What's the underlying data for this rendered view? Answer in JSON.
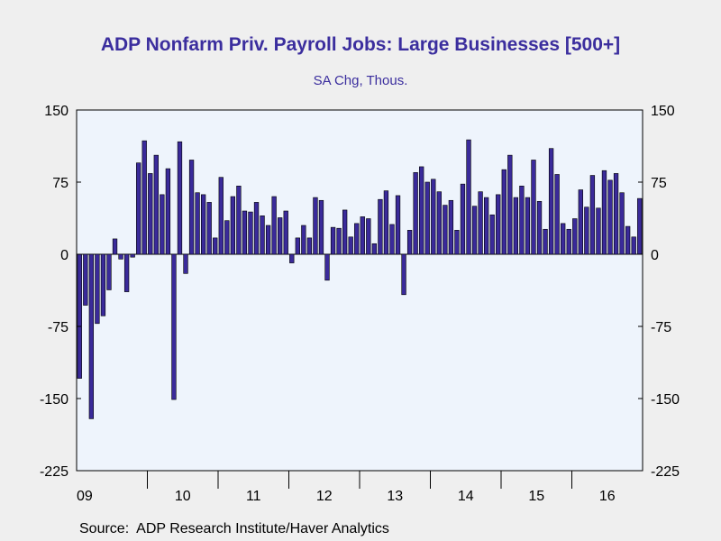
{
  "title": "ADP Nonfarm Priv. Payroll Jobs: Large Businesses [500+]",
  "subtitle": "SA Chg, Thous.",
  "source": "Source:  ADP Research Institute/Haver Analytics",
  "colors": {
    "background": "#efefef",
    "plot_background": "#eef4fc",
    "bar_fill": "#3a2a9a",
    "bar_stroke": "#000000",
    "title": "#3b2e9e"
  },
  "chart_data": {
    "type": "bar",
    "x_start": "2009-01",
    "x_end": "2016-12",
    "frequency": "monthly",
    "x_tick_labels": [
      "09",
      "10",
      "11",
      "12",
      "13",
      "14",
      "15",
      "16"
    ],
    "y_tick_labels": [
      "150",
      "75",
      "0",
      "-75",
      "-150",
      "-225"
    ],
    "ylim": [
      -225,
      150
    ],
    "yticks": [
      150,
      75,
      0,
      -75,
      -150,
      -225
    ],
    "grid": false,
    "legend": "none",
    "values": [
      -129,
      -53,
      -171,
      -72,
      -64,
      -37,
      16,
      -5,
      -39,
      -3,
      95,
      118,
      84,
      103,
      62,
      89,
      -151,
      117,
      -20,
      98,
      64,
      62,
      54,
      17,
      80,
      35,
      60,
      71,
      45,
      44,
      54,
      40,
      30,
      60,
      38,
      45,
      -9,
      17,
      30,
      17,
      59,
      56,
      -27,
      28,
      27,
      46,
      18,
      32,
      39,
      37,
      11,
      57,
      66,
      31,
      61,
      -42,
      25,
      85,
      91,
      75,
      78,
      65,
      51,
      56,
      25,
      73,
      119,
      50,
      65,
      59,
      41,
      62,
      88,
      103,
      59,
      71,
      59,
      98,
      55,
      26,
      110,
      83,
      32,
      26,
      37,
      67,
      49,
      82,
      48,
      87,
      77,
      84,
      64,
      29,
      18,
      58
    ]
  }
}
